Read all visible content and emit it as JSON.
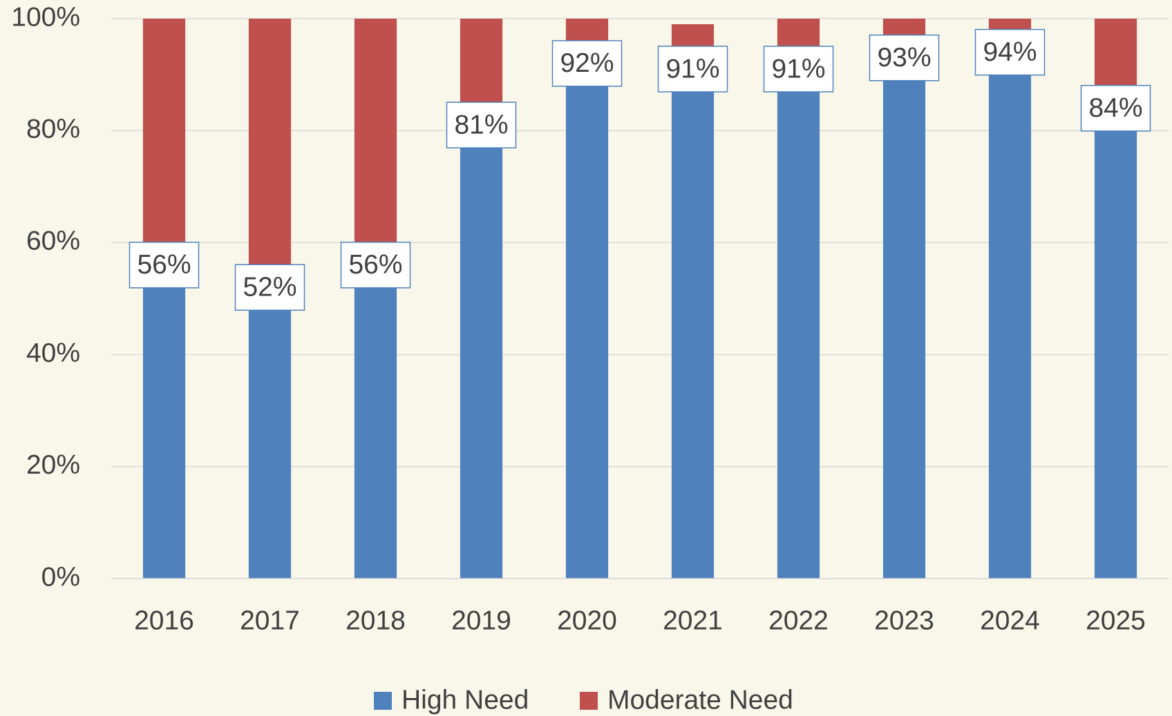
{
  "chart_data": {
    "type": "stacked_bar",
    "categories": [
      "2016",
      "2017",
      "2018",
      "2019",
      "2020",
      "2021",
      "2022",
      "2023",
      "2024",
      "2025"
    ],
    "series": [
      {
        "name": "High Need",
        "color": "#4f81bd",
        "values": [
          56,
          52,
          56,
          81,
          92,
          91,
          91,
          93,
          94,
          84
        ],
        "value_labels": [
          "56%",
          "52%",
          "56%",
          "81%",
          "92%",
          "91%",
          "91%",
          "93%",
          "94%",
          "84%"
        ]
      },
      {
        "name": "Moderate Need",
        "color": "#c0504d",
        "values": [
          44,
          48,
          44,
          19,
          8,
          8,
          9,
          7,
          6,
          16
        ]
      }
    ],
    "ylim": [
      0,
      100
    ],
    "yticks": [
      {
        "value": 0,
        "label": "0%"
      },
      {
        "value": 20,
        "label": "20%"
      },
      {
        "value": 40,
        "label": "40%"
      },
      {
        "value": 60,
        "label": "60%"
      },
      {
        "value": 80,
        "label": "80%"
      },
      {
        "value": 100,
        "label": "100%"
      }
    ],
    "grid": true,
    "legend": "bottom"
  }
}
